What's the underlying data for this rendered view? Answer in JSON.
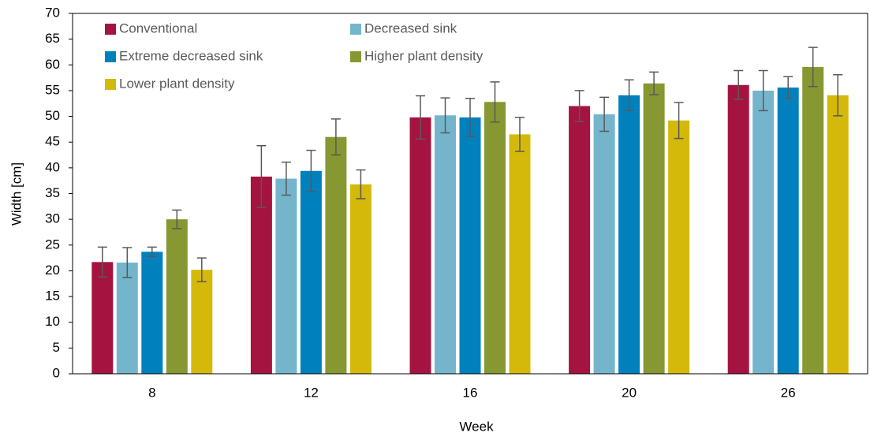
{
  "chart_data": {
    "type": "bar",
    "x_label": "Week",
    "y_label": "Width [cm]",
    "categories": [
      "8",
      "12",
      "16",
      "20",
      "26"
    ],
    "series": [
      {
        "name": "Conventional",
        "color": "#a51441",
        "values": [
          21.7,
          38.3,
          49.8,
          52.0,
          56.1
        ],
        "errors": [
          2.9,
          6.0,
          4.2,
          3.0,
          2.8
        ]
      },
      {
        "name": "Decreased sink",
        "color": "#75b5cc",
        "values": [
          21.6,
          37.9,
          50.2,
          50.4,
          55.0
        ],
        "errors": [
          2.9,
          3.2,
          3.4,
          3.3,
          3.9
        ]
      },
      {
        "name": "Extreme decreased sink",
        "color": "#0081bd",
        "values": [
          23.7,
          39.4,
          49.8,
          54.1,
          55.6
        ],
        "errors": [
          0.9,
          4.0,
          3.7,
          3.0,
          2.1
        ]
      },
      {
        "name": "Higher plant density",
        "color": "#879833",
        "values": [
          30.0,
          46.0,
          52.8,
          56.4,
          59.6
        ],
        "errors": [
          1.8,
          3.5,
          3.9,
          2.2,
          3.8
        ]
      },
      {
        "name": "Lower plant density",
        "color": "#d4b90a",
        "values": [
          20.2,
          36.8,
          46.5,
          49.2,
          54.1
        ],
        "errors": [
          2.3,
          2.8,
          3.3,
          3.5,
          4.0
        ]
      }
    ],
    "ylim": [
      0,
      70
    ],
    "yticks": [
      0,
      5,
      10,
      15,
      20,
      25,
      30,
      35,
      40,
      45,
      50,
      55,
      60,
      65,
      70
    ],
    "grid": false,
    "legend": "upper left",
    "error_color": "#595959"
  }
}
